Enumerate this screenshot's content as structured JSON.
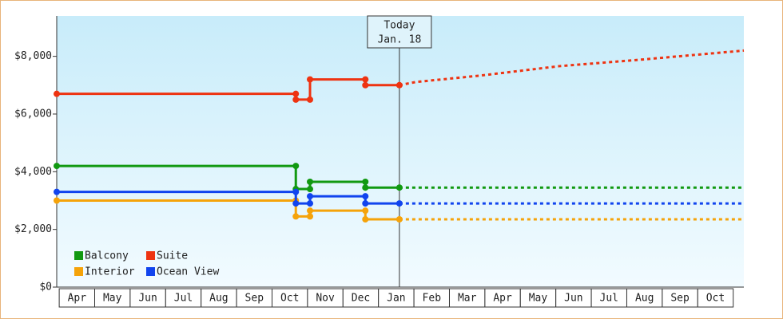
{
  "chart_data": {
    "type": "line",
    "categories": [
      "Apr",
      "May",
      "Jun",
      "Jul",
      "Aug",
      "Sep",
      "Oct",
      "Nov",
      "Dec",
      "Jan",
      "Feb",
      "Mar",
      "Apr",
      "May",
      "Jun",
      "Jul",
      "Aug",
      "Sep",
      "Oct"
    ],
    "xlim": [
      -0.07,
      19.3
    ],
    "ylim": [
      0,
      9400
    ],
    "yticks": [
      {
        "value": 0,
        "label": "$0"
      },
      {
        "value": 2000,
        "label": "$2,000"
      },
      {
        "value": 4000,
        "label": "$4,000"
      },
      {
        "value": 6000,
        "label": "$6,000"
      },
      {
        "value": 8000,
        "label": "$8,000"
      }
    ],
    "series": [
      {
        "name": "Balcony",
        "color": "#119911",
        "x": [
          -0.07,
          6.67,
          6.67,
          7.07,
          7.07,
          8.63,
          8.63,
          9.59
        ],
        "values": [
          4200,
          4200,
          3400,
          3400,
          3650,
          3650,
          3450,
          3450
        ],
        "forecast_x": [
          9.59,
          19.3
        ],
        "forecast_values": [
          3450,
          3450
        ]
      },
      {
        "name": "Suite",
        "color": "#ee3311",
        "x": [
          -0.07,
          6.67,
          6.67,
          7.07,
          7.07,
          8.63,
          8.63,
          9.59
        ],
        "values": [
          6700,
          6700,
          6500,
          6500,
          7200,
          7200,
          7000,
          7000
        ],
        "forecast_x": [
          9.59,
          10.05,
          11.85,
          14.1,
          16.35,
          19.3
        ],
        "forecast_values": [
          7000,
          7110,
          7330,
          7660,
          7880,
          8200
        ]
      },
      {
        "name": "Interior",
        "color": "#f5a30a",
        "x": [
          -0.07,
          6.67,
          6.67,
          7.07,
          7.07,
          8.63,
          8.63,
          9.59
        ],
        "values": [
          3000,
          3000,
          2450,
          2450,
          2650,
          2650,
          2350,
          2350
        ],
        "forecast_x": [
          9.59,
          19.3
        ],
        "forecast_values": [
          2350,
          2350
        ]
      },
      {
        "name": "Ocean View",
        "color": "#1144ee",
        "x": [
          -0.07,
          6.67,
          6.67,
          7.07,
          7.07,
          8.63,
          8.63,
          9.59
        ],
        "values": [
          3300,
          3300,
          2900,
          2900,
          3150,
          3150,
          2900,
          2900
        ],
        "forecast_x": [
          9.59,
          19.3
        ],
        "forecast_values": [
          2900,
          2900
        ]
      }
    ],
    "annotation": {
      "lines": [
        "Today",
        "Jan. 18"
      ],
      "x": 9.59
    },
    "legend": "lower left"
  }
}
